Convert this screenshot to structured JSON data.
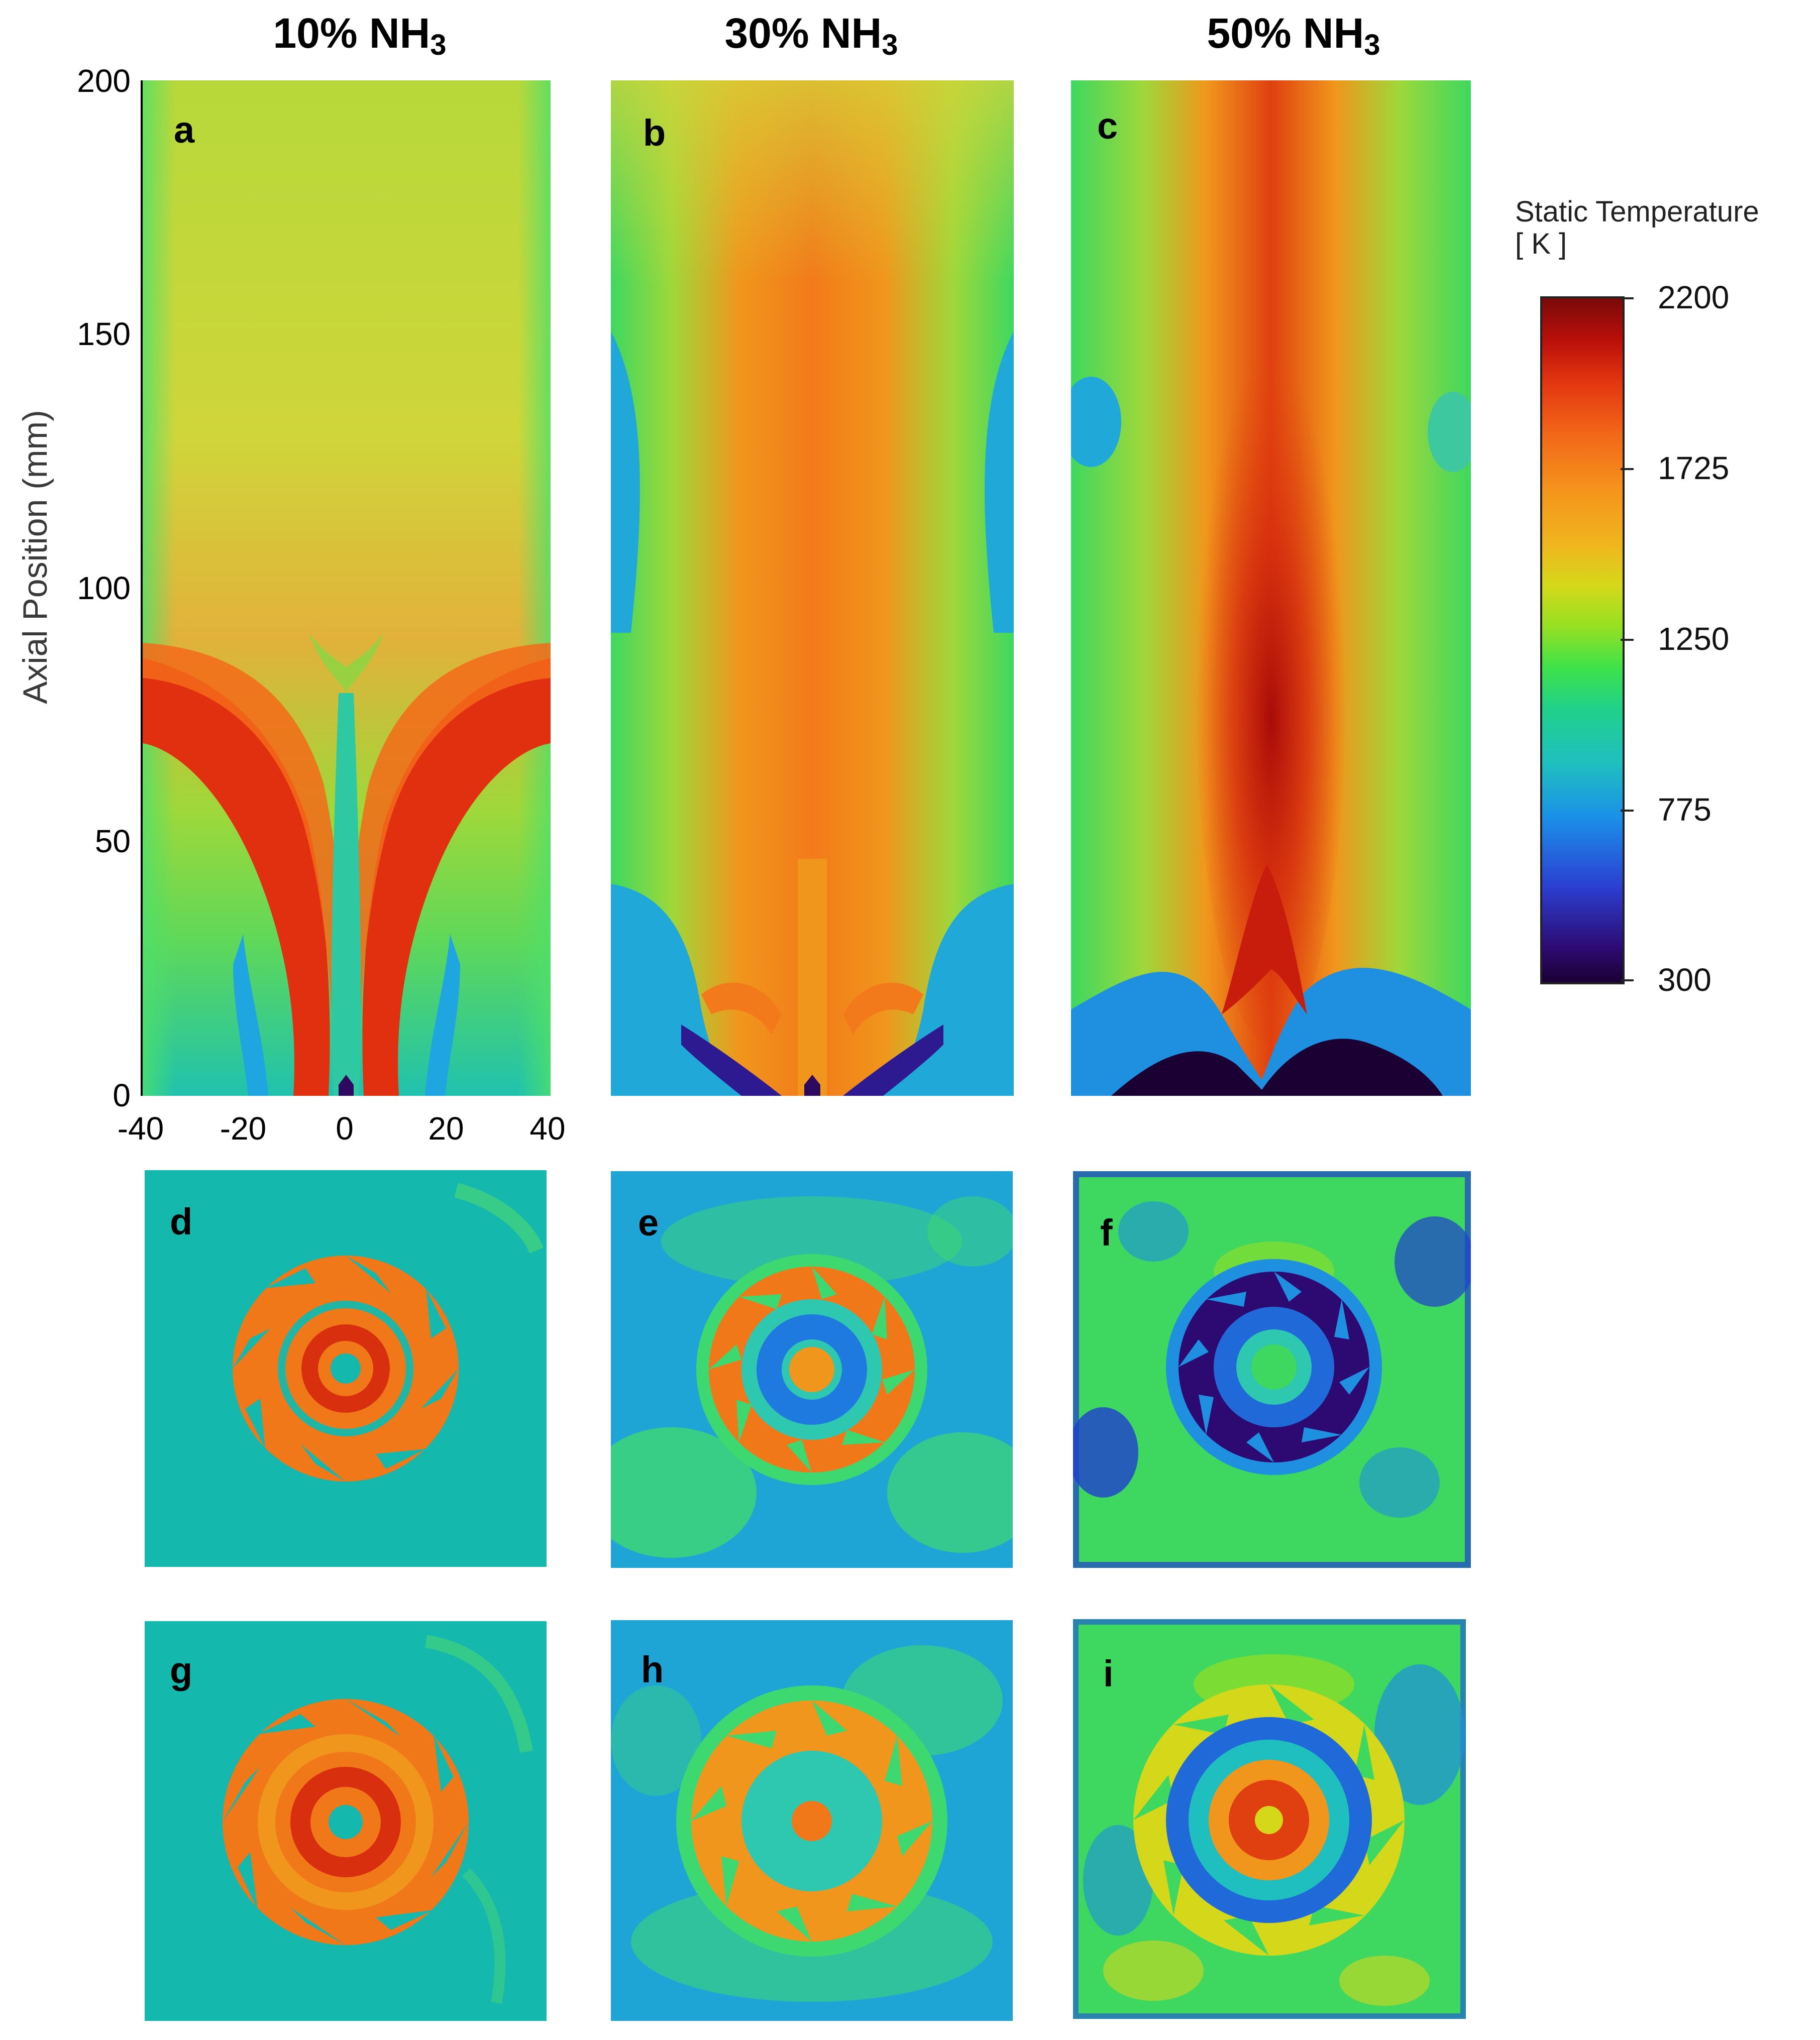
{
  "columns": [
    {
      "label": "10% NH",
      "subscript": "3"
    },
    {
      "label": "30% NH",
      "subscript": "3"
    },
    {
      "label": "50% NH",
      "subscript": "3"
    }
  ],
  "panel_letters": [
    "a",
    "b",
    "c",
    "d",
    "e",
    "f",
    "g",
    "h",
    "i"
  ],
  "axes": {
    "y_title": "Axial Position (mm)",
    "y_ticks": [
      "200",
      "150",
      "100",
      "50",
      "0"
    ],
    "x_ticks": [
      "-40",
      "-20",
      "0",
      "20",
      "40"
    ]
  },
  "colorbar": {
    "title_line1": "Static Temperature",
    "title_line2": "[ K ]",
    "ticks": [
      "2200",
      "1725",
      "1250",
      "775",
      "300"
    ],
    "colors": [
      "#1a0033",
      "#2b3fd1",
      "#1fbfc0",
      "#3ee24a",
      "#f0b51e",
      "#f26818",
      "#7a0a0a"
    ]
  }
}
